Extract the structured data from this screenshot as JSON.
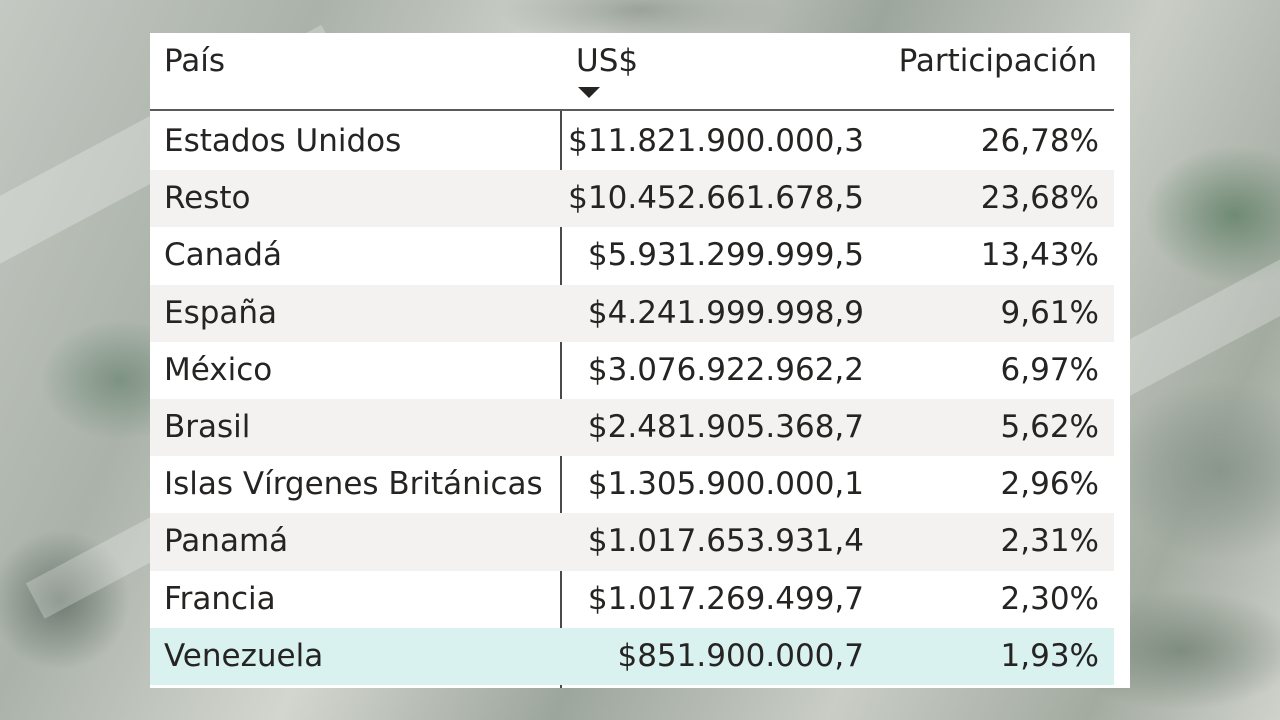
{
  "table": {
    "columns": {
      "country": "País",
      "usd": "US$",
      "share": "Participación"
    },
    "sort": {
      "column": "usd",
      "direction": "descending",
      "icon": "sort-descending-icon"
    },
    "rows": [
      {
        "country": "Estados Unidos",
        "usd": "$11.821.900.000,3",
        "share": "26,78%"
      },
      {
        "country": "Resto",
        "usd": "$10.452.661.678,5",
        "share": "23,68%"
      },
      {
        "country": "Canadá",
        "usd": "$5.931.299.999,5",
        "share": "13,43%"
      },
      {
        "country": "España",
        "usd": "$4.241.999.998,9",
        "share": "9,61%"
      },
      {
        "country": "México",
        "usd": "$3.076.922.962,2",
        "share": "6,97%"
      },
      {
        "country": "Brasil",
        "usd": "$2.481.905.368,7",
        "share": "5,62%"
      },
      {
        "country": "Islas Vírgenes Británicas",
        "usd": "$1.305.900.000,1",
        "share": "2,96%"
      },
      {
        "country": "Panamá",
        "usd": "$1.017.653.931,4",
        "share": "2,31%"
      },
      {
        "country": "Francia",
        "usd": "$1.017.269.499,7",
        "share": "2,30%"
      },
      {
        "country": "Venezuela",
        "usd": "$851.900.000,7",
        "share": "1,93%",
        "highlighted": true
      }
    ]
  },
  "colors": {
    "highlight_row": "#d9f2ef",
    "alt_row": "#f3f2f1",
    "text": "#252423"
  }
}
